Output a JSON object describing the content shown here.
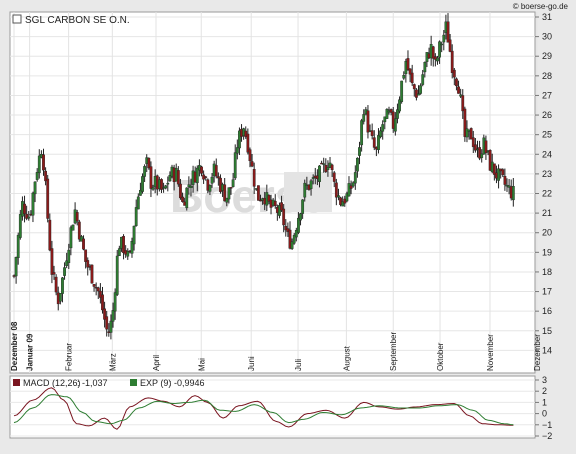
{
  "watermark": "© boerse-go.de",
  "chart_data": [
    {
      "type": "candlestick",
      "title": "SGL CARBON SE O.N.",
      "ylim": [
        13,
        31
      ],
      "yticks": [
        14,
        15,
        16,
        17,
        18,
        19,
        20,
        21,
        22,
        23,
        24,
        25,
        26,
        27,
        28,
        29,
        30,
        31
      ],
      "x_labels": [
        {
          "label": "Dezember 08",
          "bold": true
        },
        {
          "label": "Januar 09",
          "bold": true
        },
        {
          "label": "Februar",
          "bold": false
        },
        {
          "label": "März",
          "bold": false
        },
        {
          "label": "April",
          "bold": false
        },
        {
          "label": "Mai",
          "bold": false
        },
        {
          "label": "Juni",
          "bold": false
        },
        {
          "label": "Juli",
          "bold": false
        },
        {
          "label": "August",
          "bold": false
        },
        {
          "label": "September",
          "bold": false
        },
        {
          "label": "Oktober",
          "bold": false
        },
        {
          "label": "November",
          "bold": false
        },
        {
          "label": "Dezember",
          "bold": false
        }
      ],
      "x_label_days": [
        0,
        10,
        35,
        63,
        91,
        120,
        152,
        182,
        213,
        243,
        273,
        305,
        335
      ],
      "anchors": [
        [
          0,
          17.8
        ],
        [
          5,
          21.5
        ],
        [
          10,
          20.8
        ],
        [
          14,
          23
        ],
        [
          18,
          24.5
        ],
        [
          20,
          22.5
        ],
        [
          24,
          18.2
        ],
        [
          28,
          16.5
        ],
        [
          31,
          17.6
        ],
        [
          35,
          19.5
        ],
        [
          39,
          21.2
        ],
        [
          42,
          20
        ],
        [
          46,
          18.5
        ],
        [
          50,
          17.8
        ],
        [
          54,
          17
        ],
        [
          57,
          16
        ],
        [
          60,
          14.8
        ],
        [
          63,
          15.6
        ],
        [
          67,
          19.5
        ],
        [
          71,
          19.2
        ],
        [
          74,
          18.5
        ],
        [
          78,
          21.2
        ],
        [
          81,
          22.5
        ],
        [
          85,
          23.5
        ],
        [
          88,
          22.5
        ],
        [
          91,
          22.5
        ],
        [
          96,
          22
        ],
        [
          100,
          23
        ],
        [
          104,
          23
        ],
        [
          108,
          21.5
        ],
        [
          112,
          22.5
        ],
        [
          116,
          23
        ],
        [
          120,
          23.5
        ],
        [
          124,
          22.5
        ],
        [
          128,
          23.2
        ],
        [
          132,
          22.5
        ],
        [
          136,
          21.8
        ],
        [
          140,
          22.5
        ],
        [
          143,
          24.5
        ],
        [
          147,
          25.5
        ],
        [
          150,
          24.5
        ],
        [
          152,
          23.5
        ],
        [
          156,
          21.8
        ],
        [
          160,
          22
        ],
        [
          164,
          21.3
        ],
        [
          168,
          21.2
        ],
        [
          172,
          20.8
        ],
        [
          175,
          19.8
        ],
        [
          178,
          19.5
        ],
        [
          182,
          20.8
        ],
        [
          186,
          22.2
        ],
        [
          190,
          22.5
        ],
        [
          194,
          22.8
        ],
        [
          198,
          23.2
        ],
        [
          202,
          23.8
        ],
        [
          205,
          22.5
        ],
        [
          209,
          21.6
        ],
        [
          213,
          21.8
        ],
        [
          217,
          22.5
        ],
        [
          220,
          23.5
        ],
        [
          224,
          26.5
        ],
        [
          228,
          25
        ],
        [
          232,
          24
        ],
        [
          236,
          25.5
        ],
        [
          240,
          26
        ],
        [
          243,
          25.5
        ],
        [
          247,
          27
        ],
        [
          251,
          28.8
        ],
        [
          255,
          27.5
        ],
        [
          259,
          27
        ],
        [
          263,
          28.5
        ],
        [
          267,
          29.5
        ],
        [
          270,
          28.5
        ],
        [
          273,
          29.5
        ],
        [
          277,
          30.5
        ],
        [
          281,
          28.5
        ],
        [
          285,
          27.5
        ],
        [
          289,
          24.8
        ],
        [
          293,
          25
        ],
        [
          297,
          24
        ],
        [
          301,
          24.5
        ],
        [
          305,
          23.5
        ],
        [
          309,
          23
        ],
        [
          313,
          22.6
        ],
        [
          317,
          22.2
        ],
        [
          320,
          22
        ]
      ],
      "series": [
        {
          "name": "MACD (12,26)",
          "value": "-1,037",
          "color": "#7a1520",
          "anchors": [
            [
              0,
              -0.2
            ],
            [
              12,
              1.2
            ],
            [
              24,
              2.3
            ],
            [
              32,
              1.2
            ],
            [
              40,
              -0.9
            ],
            [
              48,
              -1.1
            ],
            [
              58,
              -0.4
            ],
            [
              66,
              -1.4
            ],
            [
              74,
              0.6
            ],
            [
              86,
              1.4
            ],
            [
              96,
              1.1
            ],
            [
              106,
              0.6
            ],
            [
              116,
              1.6
            ],
            [
              124,
              1.0
            ],
            [
              134,
              -0.4
            ],
            [
              144,
              0.7
            ],
            [
              156,
              1.1
            ],
            [
              168,
              -0.7
            ],
            [
              176,
              -1.2
            ],
            [
              188,
              0.0
            ],
            [
              200,
              0.3
            ],
            [
              212,
              -0.4
            ],
            [
              224,
              1.0
            ],
            [
              234,
              0.6
            ],
            [
              246,
              0.4
            ],
            [
              258,
              0.6
            ],
            [
              270,
              0.8
            ],
            [
              282,
              0.9
            ],
            [
              292,
              -0.2
            ],
            [
              300,
              -0.9
            ],
            [
              310,
              -1.0
            ],
            [
              320,
              -1.037
            ]
          ]
        },
        {
          "name": "EXP (9)",
          "value": "-0,9946",
          "color": "#2e7d32",
          "anchors": [
            [
              0,
              -0.8
            ],
            [
              12,
              0.5
            ],
            [
              24,
              1.7
            ],
            [
              34,
              1.5
            ],
            [
              44,
              0.1
            ],
            [
              52,
              -0.7
            ],
            [
              62,
              -0.9
            ],
            [
              70,
              -0.6
            ],
            [
              80,
              0.5
            ],
            [
              92,
              1.1
            ],
            [
              102,
              0.9
            ],
            [
              112,
              1.0
            ],
            [
              122,
              1.2
            ],
            [
              132,
              0.3
            ],
            [
              142,
              0.2
            ],
            [
              154,
              0.8
            ],
            [
              166,
              0.1
            ],
            [
              176,
              -0.8
            ],
            [
              186,
              -0.5
            ],
            [
              198,
              0.1
            ],
            [
              210,
              -0.1
            ],
            [
              222,
              0.5
            ],
            [
              234,
              0.7
            ],
            [
              248,
              0.5
            ],
            [
              260,
              0.5
            ],
            [
              272,
              0.7
            ],
            [
              284,
              0.8
            ],
            [
              294,
              0.3
            ],
            [
              304,
              -0.6
            ],
            [
              314,
              -0.9
            ],
            [
              320,
              -0.9946
            ]
          ]
        }
      ]
    },
    {
      "type": "line",
      "title": "",
      "ylim": [
        -2,
        3
      ],
      "yticks": [
        -2,
        -1,
        0,
        1,
        2,
        3
      ],
      "tick_labels": [
        "−2",
        "−1",
        "0",
        "1",
        "2",
        "3"
      ]
    }
  ]
}
